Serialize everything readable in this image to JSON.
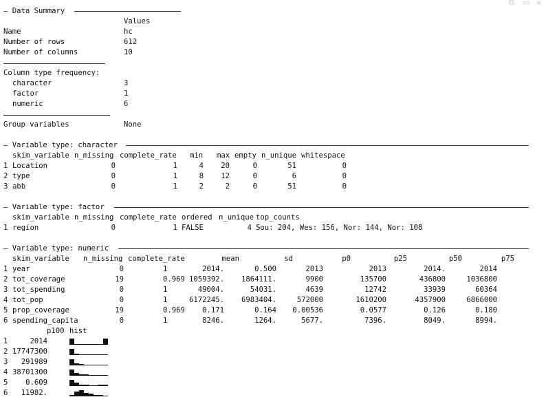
{
  "window_controls": {
    "restore_icon": "restore-icon",
    "minimize_icon": "minimize-icon",
    "restore": "⧉",
    "minimize": "▭",
    "close": "×"
  },
  "summary": {
    "title": "— Data Summary",
    "values_header": "Values",
    "rows": [
      {
        "label": "Name",
        "value": "hc"
      },
      {
        "label": "Number of rows",
        "value": "612"
      },
      {
        "label": "Number of columns",
        "value": "10"
      }
    ],
    "col_type_label": "Column type frequency:",
    "col_types": [
      {
        "label": "character",
        "value": "3"
      },
      {
        "label": "factor",
        "value": "1"
      },
      {
        "label": "numeric",
        "value": "6"
      }
    ],
    "group_label": "Group variables",
    "group_value": "None"
  },
  "character": {
    "title": "— Variable type: character",
    "headers": [
      "skim_variable",
      "n_missing",
      "complete_rate",
      "min",
      "max",
      "empty",
      "n_unique",
      "whitespace"
    ],
    "rows": [
      {
        "idx": "1",
        "var": "Location",
        "n_missing": "0",
        "complete_rate": "1",
        "min": "4",
        "max": "20",
        "empty": "0",
        "n_unique": "51",
        "whitespace": "0"
      },
      {
        "idx": "2",
        "var": "type",
        "n_missing": "0",
        "complete_rate": "1",
        "min": "8",
        "max": "12",
        "empty": "0",
        "n_unique": "6",
        "whitespace": "0"
      },
      {
        "idx": "3",
        "var": "abb",
        "n_missing": "0",
        "complete_rate": "1",
        "min": "2",
        "max": "2",
        "empty": "0",
        "n_unique": "51",
        "whitespace": "0"
      }
    ]
  },
  "factor": {
    "title": "— Variable type: factor",
    "headers": [
      "skim_variable",
      "n_missing",
      "complete_rate",
      "ordered",
      "n_unique",
      "top_counts"
    ],
    "rows": [
      {
        "idx": "1",
        "var": "region",
        "n_missing": "0",
        "complete_rate": "1",
        "ordered": "FALSE",
        "n_unique": "4",
        "top_counts": "Sou: 204, Wes: 156, Nor: 144, Nor: 108"
      }
    ]
  },
  "numeric": {
    "title": "— Variable type: numeric",
    "headers": [
      "skim_variable",
      "n_missing",
      "complete_rate",
      "mean",
      "sd",
      "p0",
      "p25",
      "p50",
      "p75"
    ],
    "rows": [
      {
        "idx": "1",
        "var": "year",
        "n_missing": "0",
        "complete_rate": "1",
        "mean": "2014.",
        "sd": "0.500",
        "p0": "2013",
        "p25": "2013",
        "p50": "2014.",
        "p75": "2014"
      },
      {
        "idx": "2",
        "var": "tot_coverage",
        "n_missing": "19",
        "complete_rate": "0.969",
        "mean": "1059392.",
        "sd": "1864111.",
        "p0": "9900",
        "p25": "135700",
        "p50": "436800",
        "p75": "1036800"
      },
      {
        "idx": "3",
        "var": "tot_spending",
        "n_missing": "0",
        "complete_rate": "1",
        "mean": "49004.",
        "sd": "54031.",
        "p0": "4639",
        "p25": "12742",
        "p50": "33939",
        "p75": "60364"
      },
      {
        "idx": "4",
        "var": "tot_pop",
        "n_missing": "0",
        "complete_rate": "1",
        "mean": "6172245.",
        "sd": "6983404.",
        "p0": "572000",
        "p25": "1610200",
        "p50": "4357900",
        "p75": "6866000"
      },
      {
        "idx": "5",
        "var": "prop_coverage",
        "n_missing": "19",
        "complete_rate": "0.969",
        "mean": "0.171",
        "sd": "0.164",
        "p0": "0.00536",
        "p25": "0.0577",
        "p50": "0.126",
        "p75": "0.180"
      },
      {
        "idx": "6",
        "var": "spending_capita",
        "n_missing": "0",
        "complete_rate": "1",
        "mean": "8246.",
        "sd": "1264.",
        "p0": "5677.",
        "p25": "7396.",
        "p50": "8049.",
        "p75": "8994."
      }
    ],
    "tail_headers": [
      "p100",
      "hist"
    ],
    "tail_rows": [
      {
        "idx": "1",
        "p100": "2014",
        "hist": [
          1,
          0,
          0,
          0,
          0,
          0,
          0,
          1
        ]
      },
      {
        "idx": "2",
        "p100": "17747300",
        "hist": [
          1,
          0.1,
          0,
          0,
          0,
          0,
          0,
          0
        ]
      },
      {
        "idx": "3",
        "p100": "291989",
        "hist": [
          1,
          0.3,
          0.1,
          0,
          0,
          0,
          0,
          0
        ]
      },
      {
        "idx": "4",
        "p100": "38701300",
        "hist": [
          1,
          0.45,
          0.15,
          0.1,
          0,
          0,
          0,
          0
        ]
      },
      {
        "idx": "5",
        "p100": "0.609",
        "hist": [
          1,
          0.6,
          0.2,
          0.1,
          0,
          0,
          0.1,
          0.1
        ]
      },
      {
        "idx": "6",
        "p100": "11982.",
        "hist": [
          0.2,
          0.8,
          1,
          0.6,
          0.4,
          0.2,
          0.1,
          0
        ]
      }
    ]
  }
}
